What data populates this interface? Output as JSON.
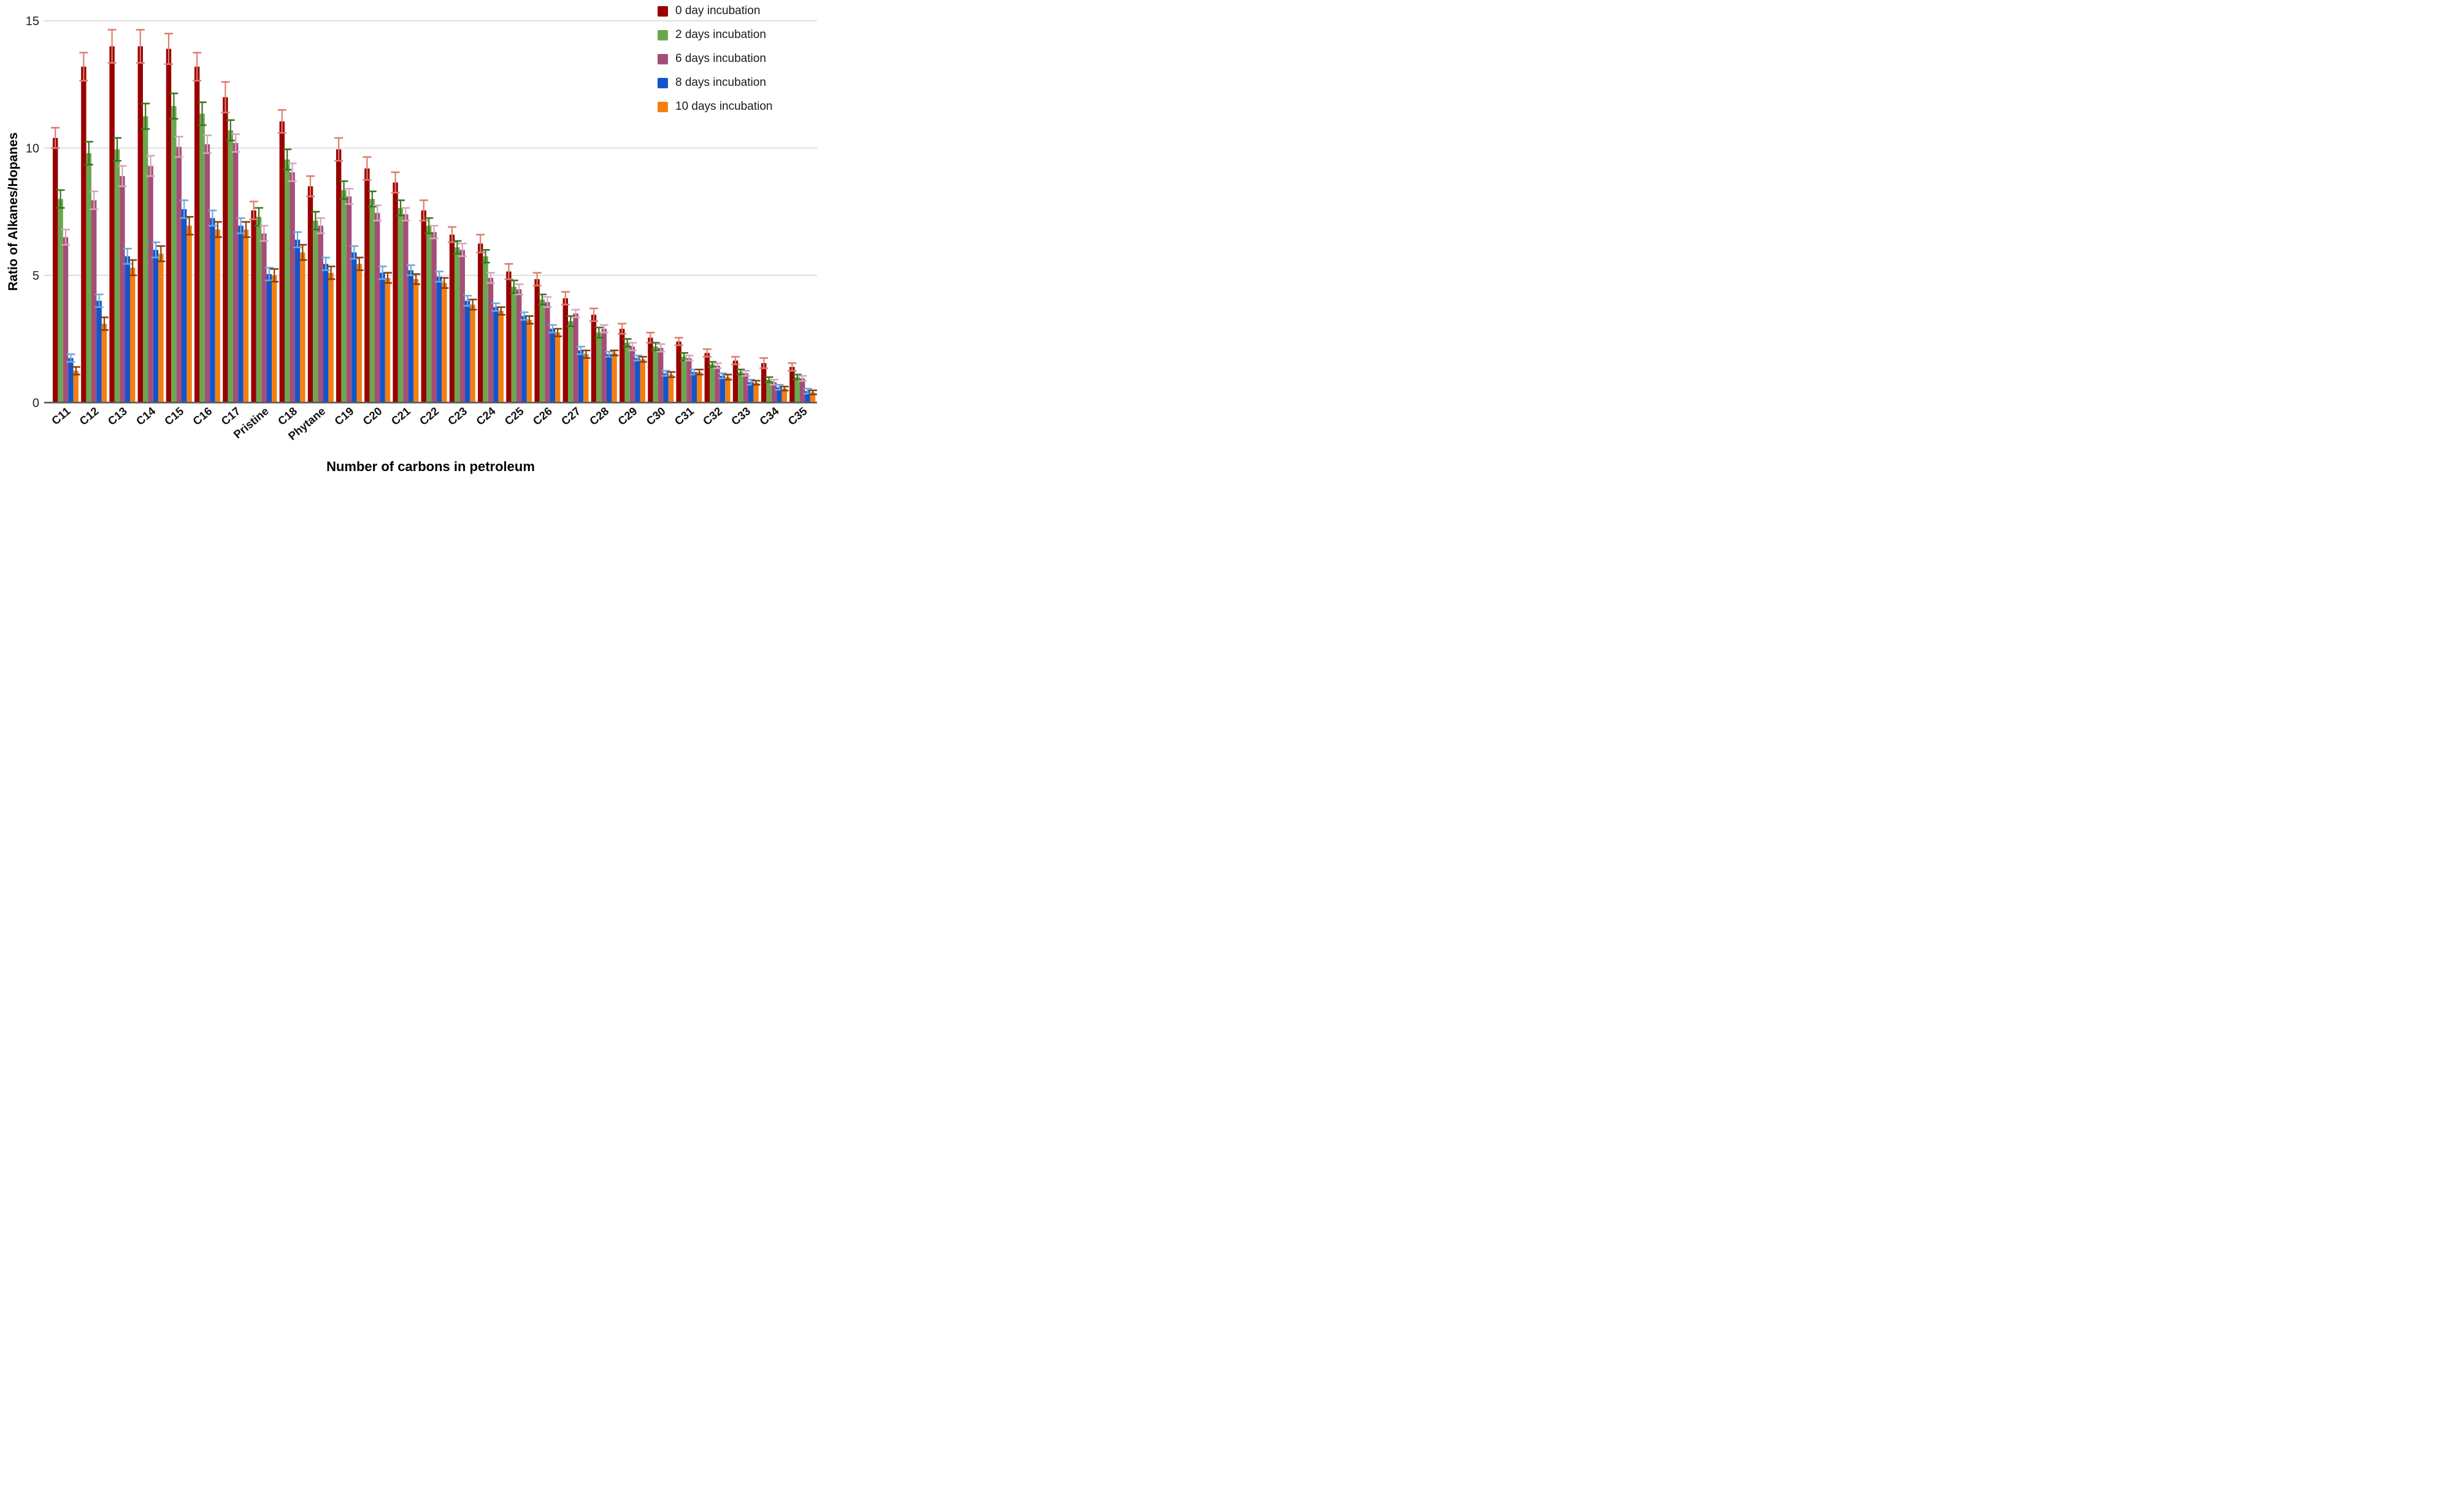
{
  "chart_data": {
    "type": "bar",
    "title": "",
    "xlabel": "Number of carbons in petroleum",
    "ylabel": "Ratio of Alkanes/Hopanes",
    "ylim": [
      0,
      15
    ],
    "yticks": [
      0,
      5,
      10,
      15
    ],
    "grid": "horizontal-only",
    "legend_position": "top-right",
    "background": "#ffffff",
    "gridline_color": "#cccccc",
    "baseline_color": "#595959",
    "categories": [
      "C11",
      "C12",
      "C13",
      "C14",
      "C15",
      "C16",
      "C17",
      "Pristine",
      "C18",
      "Phytane",
      "C19",
      "C20",
      "C21",
      "C22",
      "C23",
      "C24",
      "C25",
      "C26",
      "C27",
      "C28",
      "C29",
      "C30",
      "C31",
      "C32",
      "C33",
      "C34",
      "C35"
    ],
    "series": [
      {
        "name": "0 day incubation",
        "color": "#990000",
        "error_color": "#dd7e6b",
        "values": [
          10.4,
          13.2,
          14.0,
          14.0,
          13.9,
          13.2,
          12.0,
          7.55,
          11.05,
          8.5,
          9.95,
          9.2,
          8.65,
          7.55,
          6.6,
          6.25,
          5.15,
          4.85,
          4.1,
          3.45,
          2.9,
          2.55,
          2.4,
          1.95,
          1.65,
          1.55,
          1.4
        ],
        "errors": [
          0.4,
          0.55,
          0.65,
          0.65,
          0.6,
          0.55,
          0.6,
          0.35,
          0.45,
          0.4,
          0.45,
          0.45,
          0.4,
          0.4,
          0.3,
          0.35,
          0.3,
          0.25,
          0.25,
          0.25,
          0.2,
          0.2,
          0.15,
          0.15,
          0.15,
          0.2,
          0.15
        ]
      },
      {
        "name": "2 days incubation",
        "color": "#6aa84f",
        "error_color": "#38761d",
        "values": [
          8.0,
          9.8,
          9.95,
          11.25,
          11.65,
          11.35,
          10.7,
          7.3,
          9.55,
          7.15,
          8.35,
          8.0,
          7.65,
          6.95,
          6.1,
          5.75,
          4.55,
          4.05,
          3.2,
          2.75,
          2.35,
          2.2,
          1.8,
          1.5,
          1.2,
          0.9,
          1.0
        ],
        "errors": [
          0.35,
          0.45,
          0.45,
          0.5,
          0.5,
          0.45,
          0.4,
          0.35,
          0.4,
          0.35,
          0.35,
          0.3,
          0.3,
          0.3,
          0.25,
          0.25,
          0.25,
          0.2,
          0.2,
          0.2,
          0.15,
          0.15,
          0.15,
          0.1,
          0.1,
          0.1,
          0.1
        ]
      },
      {
        "name": "6 days incubation",
        "color": "#a64d79",
        "error_color": "#d5a6bd",
        "values": [
          6.5,
          7.95,
          8.9,
          9.3,
          10.05,
          10.15,
          10.2,
          6.65,
          9.05,
          6.95,
          8.1,
          7.45,
          7.4,
          6.7,
          6.0,
          4.9,
          4.45,
          3.95,
          3.5,
          2.9,
          2.2,
          2.15,
          1.75,
          1.45,
          1.15,
          0.8,
          0.95
        ],
        "errors": [
          0.3,
          0.35,
          0.4,
          0.4,
          0.4,
          0.35,
          0.35,
          0.3,
          0.35,
          0.3,
          0.3,
          0.3,
          0.25,
          0.25,
          0.25,
          0.2,
          0.2,
          0.2,
          0.15,
          0.15,
          0.15,
          0.15,
          0.1,
          0.1,
          0.1,
          0.1,
          0.1
        ]
      },
      {
        "name": "8 days incubation",
        "color": "#1155cc",
        "error_color": "#6fa8dc",
        "values": [
          1.75,
          4.0,
          5.75,
          6.0,
          7.6,
          7.25,
          6.95,
          5.05,
          6.4,
          5.45,
          5.9,
          5.1,
          5.2,
          4.95,
          4.0,
          3.75,
          3.4,
          2.9,
          2.05,
          1.9,
          1.75,
          1.15,
          1.2,
          1.05,
          0.8,
          0.6,
          0.45
        ],
        "errors": [
          0.15,
          0.25,
          0.3,
          0.3,
          0.35,
          0.3,
          0.3,
          0.25,
          0.3,
          0.25,
          0.25,
          0.25,
          0.2,
          0.2,
          0.2,
          0.15,
          0.15,
          0.15,
          0.15,
          0.1,
          0.1,
          0.1,
          0.1,
          0.1,
          0.1,
          0.1,
          0.1
        ]
      },
      {
        "name": "10 days incubation",
        "color": "#f57e10",
        "error_color": "#83400f",
        "values": [
          1.25,
          3.1,
          5.3,
          5.85,
          6.95,
          6.8,
          6.8,
          5.0,
          5.9,
          5.1,
          5.45,
          4.9,
          4.85,
          4.7,
          3.85,
          3.6,
          3.25,
          2.75,
          1.9,
          1.95,
          1.7,
          1.1,
          1.2,
          1.0,
          0.78,
          0.55,
          0.4
        ],
        "errors": [
          0.15,
          0.25,
          0.3,
          0.3,
          0.35,
          0.3,
          0.3,
          0.25,
          0.3,
          0.25,
          0.25,
          0.2,
          0.2,
          0.2,
          0.2,
          0.15,
          0.15,
          0.15,
          0.15,
          0.1,
          0.1,
          0.1,
          0.1,
          0.1,
          0.08,
          0.08,
          0.08
        ]
      }
    ]
  }
}
